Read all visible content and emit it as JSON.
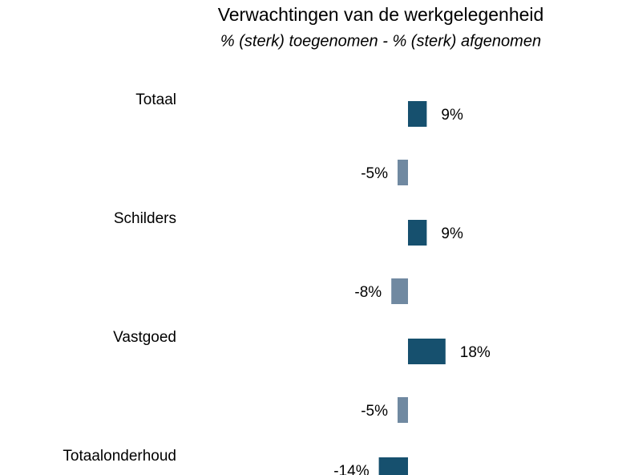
{
  "chart_data": {
    "type": "bar",
    "orientation": "horizontal",
    "title": "Verwachtingen van de werkgelegenheid",
    "subtitle": "% (sterk) toegenomen - % (sterk) afgenomen",
    "categories": [
      "Totaal",
      "Schilders",
      "Vastgoed",
      "Totaalonderhoud"
    ],
    "series": [
      {
        "color": "#16506e",
        "values": [
          9,
          9,
          18,
          -14
        ],
        "value_labels": [
          "9%",
          "9%",
          "18%",
          "-14%"
        ]
      },
      {
        "color": "#7089a1",
        "values": [
          -5,
          -8,
          -5,
          null
        ],
        "value_labels": [
          "-5%",
          "-8%",
          "-5%",
          null
        ]
      }
    ]
  }
}
